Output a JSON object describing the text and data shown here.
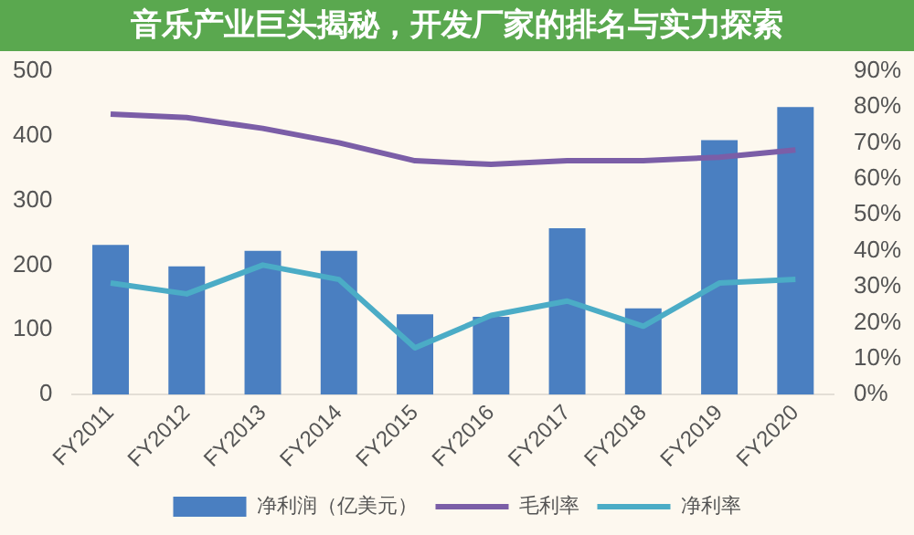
{
  "chart_data": {
    "type": "bar",
    "title": "音乐产业巨头揭秘，开发厂家的排名与实力探索",
    "categories": [
      "FY2011",
      "FY2012",
      "FY2013",
      "FY2014",
      "FY2015",
      "FY2016",
      "FY2017",
      "FY2018",
      "FY2019",
      "FY2020"
    ],
    "series": [
      {
        "name": "净利润（亿美元）",
        "color": "#4a7fc1",
        "values": [
          231,
          198,
          222,
          222,
          124,
          120,
          257,
          133,
          393,
          444
        ]
      },
      {
        "name": "毛利率",
        "type": "line",
        "axis": "y2",
        "color": "#7b5ea7",
        "values": [
          78,
          77,
          74,
          70,
          65,
          64,
          65,
          65,
          66,
          68
        ]
      },
      {
        "name": "净利率",
        "type": "line",
        "axis": "y2",
        "color": "#4bacc6",
        "values": [
          31,
          28,
          36,
          32,
          13,
          22,
          26,
          19,
          31,
          32
        ]
      }
    ],
    "ylim": [
      0,
      500
    ],
    "yticks": [
      0,
      100,
      200,
      300,
      400,
      500
    ],
    "y2lim": [
      0,
      90
    ],
    "y2ticks": [
      {
        "value": 0,
        "label": "0%"
      },
      {
        "value": 10,
        "label": "10%"
      },
      {
        "value": 20,
        "label": "20%"
      },
      {
        "value": 30,
        "label": "30%"
      },
      {
        "value": 40,
        "label": "40%"
      },
      {
        "value": 50,
        "label": "50%"
      },
      {
        "value": 60,
        "label": "60%"
      },
      {
        "value": 70,
        "label": "70%"
      },
      {
        "value": 80,
        "label": "80%"
      },
      {
        "value": 90,
        "label": "90%"
      }
    ],
    "grid": false,
    "legend": "bottom"
  }
}
